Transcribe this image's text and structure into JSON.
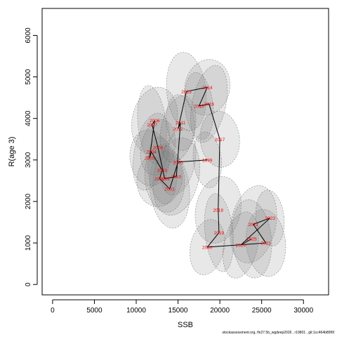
{
  "chart_data": {
    "type": "scatter",
    "xlabel": "SSB",
    "ylabel": "R(age 3)",
    "xlim": [
      -1250,
      33000
    ],
    "ylim": [
      -250,
      6650
    ],
    "x_ticks": [
      0,
      5000,
      10000,
      15000,
      20000,
      25000,
      30000
    ],
    "y_ticks": [
      0,
      1000,
      2000,
      3000,
      4000,
      5000,
      6000
    ],
    "grid": false,
    "point_color": "#ff0000",
    "ellipse_color": "#808080",
    "line_color": "#000000",
    "points": [
      {
        "year": "1999",
        "x": 18500,
        "y": 3000
      },
      {
        "year": "2000",
        "x": 15000,
        "y": 2950
      },
      {
        "year": "2001",
        "x": 14000,
        "y": 2300
      },
      {
        "year": "2002",
        "x": 12800,
        "y": 2550
      },
      {
        "year": "2003",
        "x": 13100,
        "y": 2750
      },
      {
        "year": "2004",
        "x": 11800,
        "y": 3200
      },
      {
        "year": "2005",
        "x": 11600,
        "y": 3050
      },
      {
        "year": "2006",
        "x": 12200,
        "y": 3950
      },
      {
        "year": "2007",
        "x": 11900,
        "y": 3850
      },
      {
        "year": "2008",
        "x": 12600,
        "y": 3300
      },
      {
        "year": "2009",
        "x": 13400,
        "y": 2550
      },
      {
        "year": "2010",
        "x": 14800,
        "y": 2600
      },
      {
        "year": "2011",
        "x": 15300,
        "y": 3900
      },
      {
        "year": "2012",
        "x": 15000,
        "y": 3750
      },
      {
        "year": "2013",
        "x": 16000,
        "y": 4650
      },
      {
        "year": "2014",
        "x": 18500,
        "y": 4750
      },
      {
        "year": "2015",
        "x": 17500,
        "y": 4300
      },
      {
        "year": "2016",
        "x": 18700,
        "y": 4350
      },
      {
        "year": "2017",
        "x": 20000,
        "y": 3500
      },
      {
        "year": "2018",
        "x": 19800,
        "y": 1800
      },
      {
        "year": "2019",
        "x": 19900,
        "y": 1250
      },
      {
        "year": "2020",
        "x": 18500,
        "y": 900
      },
      {
        "year": "2021",
        "x": 25500,
        "y": 1000
      },
      {
        "year": "2022",
        "x": 24000,
        "y": 1450
      },
      {
        "year": "2023",
        "x": 26000,
        "y": 1600
      },
      {
        "year": "2024",
        "x": 22500,
        "y": 950
      },
      {
        "year": "2025",
        "x": 23800,
        "y": 1100
      }
    ],
    "footer": "stockassessment.org, fln27.5b_wgdeep2026 , r19801 , git:1cc464b80f6f"
  }
}
